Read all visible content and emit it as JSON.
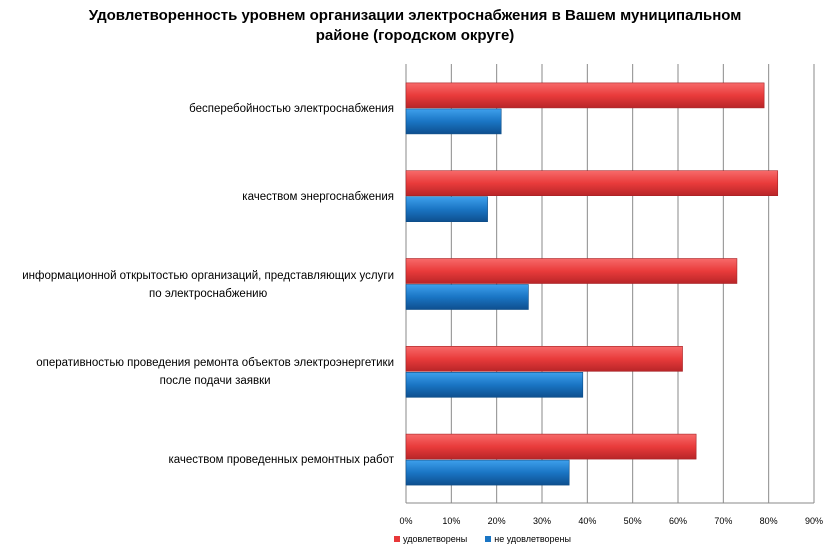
{
  "chart_data": {
    "type": "bar",
    "orientation": "horizontal",
    "title": "Удовлетворенность уровнем организации электроснабжения в Вашем муниципальном районе (городском округе)",
    "categories": [
      "бесперебойностью электроснабжения",
      "качеством энергоснабжения",
      "информационной открытостью организаций, представляющих услуги по электроснабжению",
      "оперативностью проведения  ремонта объектов электроэнергетики после подачи заявки",
      "качеством проведенных ремонтных работ"
    ],
    "category_lines": [
      [
        "бесперебойностью электроснабжения"
      ],
      [
        "качеством энергоснабжения"
      ],
      [
        "информационной открытостью организаций, представляющих услуги",
        "по электроснабжению"
      ],
      [
        "оперативностью проведения  ремонта объектов электроэнергетики",
        "после подачи заявки"
      ],
      [
        "качеством проведенных ремонтных работ"
      ]
    ],
    "series": [
      {
        "name": "удовлетворены",
        "color": "#e8383a",
        "values": [
          79,
          82,
          73,
          61,
          64
        ]
      },
      {
        "name": "не удовлетворены",
        "color": "#1a75c4",
        "values": [
          21,
          18,
          27,
          39,
          36
        ]
      }
    ],
    "xlim": [
      0,
      90
    ],
    "x_ticks": [
      "0%",
      "10%",
      "20%",
      "30%",
      "40%",
      "50%",
      "60%",
      "70%",
      "80%",
      "90%"
    ],
    "grid": true,
    "legend": "bottom",
    "xlabel": "",
    "ylabel": ""
  }
}
